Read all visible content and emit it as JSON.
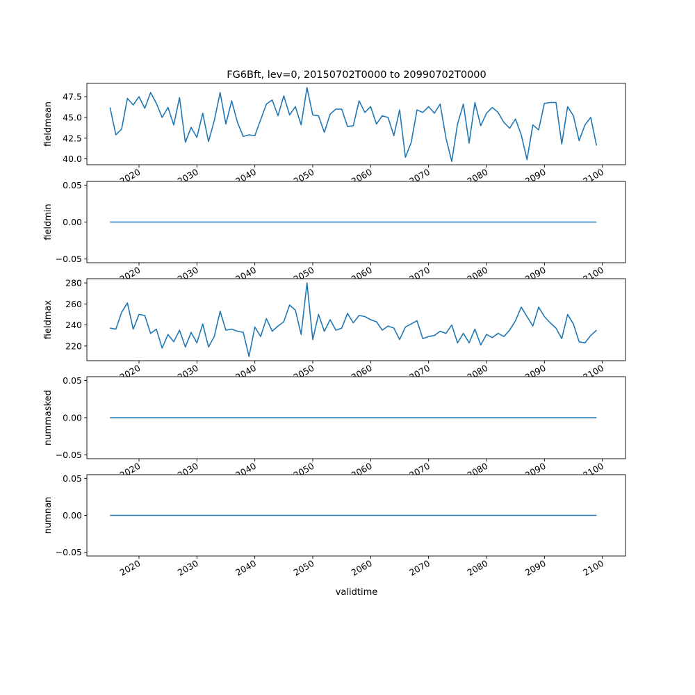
{
  "figure": {
    "title": "FG6Bft, lev=0, 20150702T0000 to 20990702T0000",
    "xlabel": "validtime"
  },
  "colors": {
    "line": "#1f77b4",
    "axes": "#000000",
    "background": "#ffffff"
  },
  "chart_data": [
    {
      "type": "line",
      "ylabel": "fieldmean",
      "xlim": [
        2011.0,
        2104.0
      ],
      "ylim": [
        39.3,
        49.1
      ],
      "yticks": [
        40.0,
        42.5,
        45.0,
        47.5
      ],
      "ytick_labels": [
        "40.0",
        "42.5",
        "45.0",
        "47.5"
      ],
      "xticks": [
        2020,
        2030,
        2040,
        2050,
        2060,
        2070,
        2080,
        2090,
        2100
      ],
      "xtick_labels": [
        "2020",
        "2030",
        "2040",
        "2050",
        "2060",
        "2070",
        "2080",
        "2090",
        "2100"
      ],
      "x": [
        2015,
        2016,
        2017,
        2018,
        2019,
        2020,
        2021,
        2022,
        2023,
        2024,
        2025,
        2026,
        2027,
        2028,
        2029,
        2030,
        2031,
        2032,
        2033,
        2034,
        2035,
        2036,
        2037,
        2038,
        2039,
        2040,
        2041,
        2042,
        2043,
        2044,
        2045,
        2046,
        2047,
        2048,
        2049,
        2050,
        2051,
        2052,
        2053,
        2054,
        2055,
        2056,
        2057,
        2058,
        2059,
        2060,
        2061,
        2062,
        2063,
        2064,
        2065,
        2066,
        2067,
        2068,
        2069,
        2070,
        2071,
        2072,
        2073,
        2074,
        2075,
        2076,
        2077,
        2078,
        2079,
        2080,
        2081,
        2082,
        2083,
        2084,
        2085,
        2086,
        2087,
        2088,
        2089,
        2090,
        2091,
        2092,
        2093,
        2094,
        2095,
        2096,
        2097,
        2098,
        2099
      ],
      "series": [
        {
          "values": [
            46.2,
            42.9,
            43.6,
            47.3,
            46.5,
            47.5,
            46.1,
            48.0,
            46.7,
            45.0,
            46.2,
            44.1,
            47.4,
            42.0,
            43.8,
            42.6,
            45.5,
            42.1,
            44.6,
            48.0,
            44.2,
            47.0,
            44.4,
            42.7,
            42.9,
            42.8,
            44.7,
            46.6,
            47.1,
            45.2,
            47.6,
            45.3,
            46.3,
            44.1,
            48.6,
            45.3,
            45.2,
            43.2,
            45.4,
            46.0,
            46.0,
            43.9,
            44.0,
            47.0,
            45.6,
            46.3,
            44.2,
            45.2,
            45.0,
            42.8,
            45.9,
            40.2,
            42.0,
            45.9,
            45.6,
            46.3,
            45.5,
            46.6,
            42.5,
            39.7,
            44.2,
            46.6,
            41.9,
            46.8,
            44.0,
            45.5,
            46.2,
            45.6,
            44.4,
            43.7,
            44.8,
            42.9,
            39.9,
            44.1,
            43.5,
            46.7,
            46.8,
            46.8,
            41.8,
            46.3,
            45.2,
            42.2,
            44.1,
            45.0,
            41.6
          ]
        }
      ]
    },
    {
      "type": "line",
      "ylabel": "fieldmin",
      "xlim": [
        2011.0,
        2104.0
      ],
      "ylim": [
        -0.055,
        0.055
      ],
      "yticks": [
        -0.05,
        0.0,
        0.05
      ],
      "ytick_labels": [
        "−0.05",
        "0.00",
        "0.05"
      ],
      "xticks": [
        2020,
        2030,
        2040,
        2050,
        2060,
        2070,
        2080,
        2090,
        2100
      ],
      "xtick_labels": [
        "2020",
        "2030",
        "2040",
        "2050",
        "2060",
        "2070",
        "2080",
        "2090",
        "2100"
      ],
      "x": [
        2015,
        2099
      ],
      "series": [
        {
          "values": [
            0.0,
            0.0
          ]
        }
      ]
    },
    {
      "type": "line",
      "ylabel": "fieldmax",
      "xlim": [
        2011.0,
        2104.0
      ],
      "ylim": [
        206.0,
        284.0
      ],
      "yticks": [
        220,
        240,
        260,
        280
      ],
      "ytick_labels": [
        "220",
        "240",
        "260",
        "280"
      ],
      "xticks": [
        2020,
        2030,
        2040,
        2050,
        2060,
        2070,
        2080,
        2090,
        2100
      ],
      "xtick_labels": [
        "2020",
        "2030",
        "2040",
        "2050",
        "2060",
        "2070",
        "2080",
        "2090",
        "2100"
      ],
      "x": [
        2015,
        2016,
        2017,
        2018,
        2019,
        2020,
        2021,
        2022,
        2023,
        2024,
        2025,
        2026,
        2027,
        2028,
        2029,
        2030,
        2031,
        2032,
        2033,
        2034,
        2035,
        2036,
        2037,
        2038,
        2039,
        2040,
        2041,
        2042,
        2043,
        2044,
        2045,
        2046,
        2047,
        2048,
        2049,
        2050,
        2051,
        2052,
        2053,
        2054,
        2055,
        2056,
        2057,
        2058,
        2059,
        2060,
        2061,
        2062,
        2063,
        2064,
        2065,
        2066,
        2067,
        2068,
        2069,
        2070,
        2071,
        2072,
        2073,
        2074,
        2075,
        2076,
        2077,
        2078,
        2079,
        2080,
        2081,
        2082,
        2083,
        2084,
        2085,
        2086,
        2087,
        2088,
        2089,
        2090,
        2091,
        2092,
        2093,
        2094,
        2095,
        2096,
        2097,
        2098,
        2099
      ],
      "series": [
        {
          "values": [
            237,
            236,
            252,
            261,
            236,
            250,
            249,
            232,
            236,
            218,
            231,
            224,
            235,
            219,
            233,
            223,
            241,
            219,
            229,
            253,
            235,
            236,
            234,
            233,
            210,
            238,
            229,
            246,
            234,
            239,
            243,
            259,
            254,
            231,
            280,
            226,
            250,
            234,
            245,
            235,
            237,
            251,
            242,
            249,
            248,
            245,
            243,
            235,
            239,
            237,
            226,
            238,
            241,
            244,
            227,
            229,
            230,
            234,
            232,
            240,
            223,
            232,
            223,
            236,
            221,
            231,
            228,
            232,
            229,
            235,
            244,
            257,
            248,
            239,
            257,
            248,
            242,
            237,
            227,
            250,
            241,
            224,
            223,
            230,
            235
          ]
        }
      ]
    },
    {
      "type": "line",
      "ylabel": "nummasked",
      "xlim": [
        2011.0,
        2104.0
      ],
      "ylim": [
        -0.055,
        0.055
      ],
      "yticks": [
        -0.05,
        0.0,
        0.05
      ],
      "ytick_labels": [
        "−0.05",
        "0.00",
        "0.05"
      ],
      "xticks": [
        2020,
        2030,
        2040,
        2050,
        2060,
        2070,
        2080,
        2090,
        2100
      ],
      "xtick_labels": [
        "2020",
        "2030",
        "2040",
        "2050",
        "2060",
        "2070",
        "2080",
        "2090",
        "2100"
      ],
      "x": [
        2015,
        2099
      ],
      "series": [
        {
          "values": [
            0.0,
            0.0
          ]
        }
      ]
    },
    {
      "type": "line",
      "ylabel": "numnan",
      "xlim": [
        2011.0,
        2104.0
      ],
      "ylim": [
        -0.055,
        0.055
      ],
      "yticks": [
        -0.05,
        0.0,
        0.05
      ],
      "ytick_labels": [
        "−0.05",
        "0.00",
        "0.05"
      ],
      "xticks": [
        2020,
        2030,
        2040,
        2050,
        2060,
        2070,
        2080,
        2090,
        2100
      ],
      "xtick_labels": [
        "2020",
        "2030",
        "2040",
        "2050",
        "2060",
        "2070",
        "2080",
        "2090",
        "2100"
      ],
      "x": [
        2015,
        2099
      ],
      "series": [
        {
          "values": [
            0.0,
            0.0
          ]
        }
      ]
    }
  ]
}
